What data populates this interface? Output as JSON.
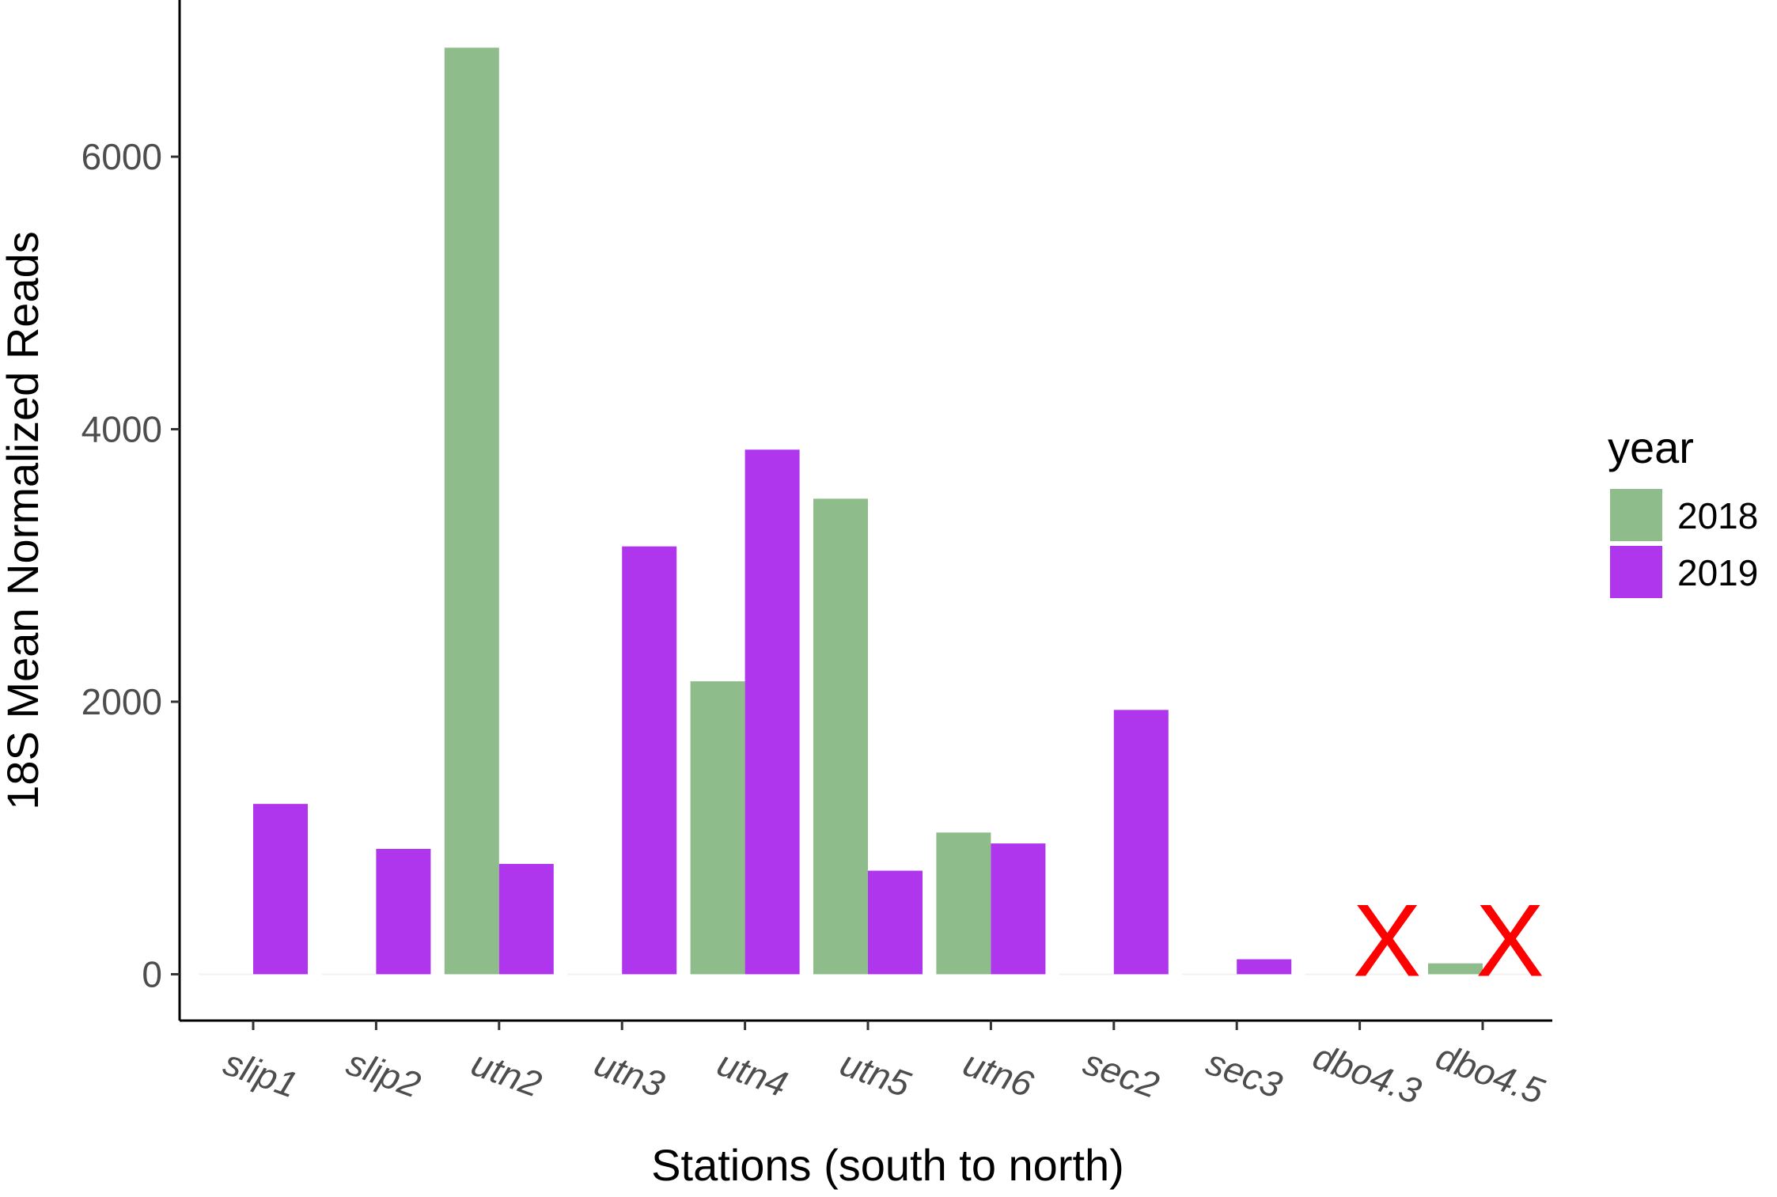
{
  "chart_data": {
    "type": "bar",
    "categories": [
      "slip1",
      "slip2",
      "utn2",
      "utn3",
      "utn4",
      "utn5",
      "utn6",
      "sec2",
      "sec3",
      "dbo4.3",
      "dbo4.5"
    ],
    "series": [
      {
        "name": "2018",
        "color": "#8fbc8b",
        "values": [
          0,
          0,
          6800,
          0,
          2150,
          3490,
          1040,
          0,
          0,
          0,
          80
        ]
      },
      {
        "name": "2019",
        "color": "#b036ed",
        "values": [
          1250,
          920,
          810,
          3140,
          3850,
          760,
          960,
          1940,
          110,
          0,
          0
        ]
      }
    ],
    "xlabel": "Stations (south to north)",
    "ylabel": "18S Mean Normalized Reads",
    "yticks": [
      0,
      2000,
      4000,
      6000
    ],
    "ylim": [
      -340,
      7150
    ],
    "legend": {
      "title": "year",
      "position": "right"
    },
    "annotations": [
      {
        "text": "X",
        "category": "dbo4.3",
        "series": "2019",
        "color": "#ff0000"
      },
      {
        "text": "X",
        "category": "dbo4.5",
        "series": "2019",
        "color": "#ff0000"
      }
    ],
    "grid": false
  }
}
